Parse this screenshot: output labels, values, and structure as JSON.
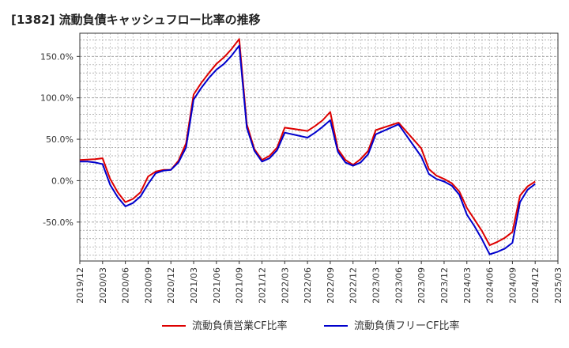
{
  "chart_data": {
    "type": "line",
    "title": "[1382]  流動負債キャッシュフロー比率の推移",
    "xlabel": "",
    "ylabel": "",
    "x_ticks": [
      "2019/12",
      "2020/03",
      "2020/06",
      "2020/09",
      "2020/12",
      "2021/03",
      "2021/06",
      "2021/09",
      "2021/12",
      "2022/03",
      "2022/06",
      "2022/09",
      "2022/12",
      "2023/03",
      "2023/06",
      "2023/09",
      "2023/12",
      "2024/03",
      "2024/06",
      "2024/09",
      "2024/12",
      "2025/03"
    ],
    "y_ticks": [
      "150.0%",
      "100.0%",
      "50.0%",
      "0.0%",
      "-50.0%"
    ],
    "y_tick_values": [
      150,
      100,
      50,
      0,
      -50
    ],
    "ylim": [
      -97,
      178
    ],
    "grid": true,
    "legend_position": "bottom",
    "x": [
      "2019/12",
      "2020/01",
      "2020/02",
      "2020/03",
      "2020/04",
      "2020/05",
      "2020/06",
      "2020/07",
      "2020/08",
      "2020/09",
      "2020/10",
      "2020/11",
      "2020/12",
      "2021/01",
      "2021/02",
      "2021/03",
      "2021/04",
      "2021/05",
      "2021/06",
      "2021/07",
      "2021/08",
      "2021/09",
      "2021/10",
      "2021/11",
      "2021/12",
      "2022/01",
      "2022/02",
      "2022/03",
      "2022/06",
      "2022/07",
      "2022/08",
      "2022/09",
      "2022/10",
      "2022/11",
      "2022/12",
      "2023/01",
      "2023/02",
      "2023/03",
      "2023/06",
      "2023/09",
      "2023/10",
      "2023/11",
      "2023/12",
      "2024/01",
      "2024/02",
      "2024/03",
      "2024/04",
      "2024/05",
      "2024/06",
      "2024/07",
      "2024/08",
      "2024/09",
      "2024/10",
      "2024/11",
      "2024/12"
    ],
    "series": [
      {
        "name": "流動負債営業CF比率",
        "color": "#dd0000",
        "values": [
          25,
          25.5,
          26,
          27,
          2,
          -14,
          -26,
          -22,
          -14,
          5,
          11,
          13,
          13,
          24,
          45,
          104,
          118,
          130,
          141,
          149,
          159,
          171,
          68,
          38,
          25,
          30,
          40,
          64,
          60,
          66,
          73,
          83,
          38,
          25,
          19,
          26,
          36,
          61,
          70,
          39,
          14,
          6,
          2,
          -3,
          -13,
          -33,
          -47,
          -61,
          -78,
          -74,
          -69,
          -62,
          -18,
          -7,
          -1
        ]
      },
      {
        "name": "流動負債フリーCF比率",
        "color": "#0000cc",
        "values": [
          23,
          23,
          22,
          20,
          -5,
          -20,
          -31,
          -27,
          -19,
          -4,
          9,
          12,
          13,
          22,
          40,
          98,
          112,
          124,
          134,
          141,
          151,
          163,
          64,
          36,
          23,
          27,
          37,
          58,
          52,
          58,
          65,
          73,
          35,
          22,
          18,
          22,
          32,
          56,
          68,
          29,
          8,
          2,
          -1,
          -6,
          -17,
          -41,
          -55,
          -71,
          -89,
          -86,
          -82,
          -75,
          -26,
          -11,
          -4
        ]
      }
    ]
  }
}
